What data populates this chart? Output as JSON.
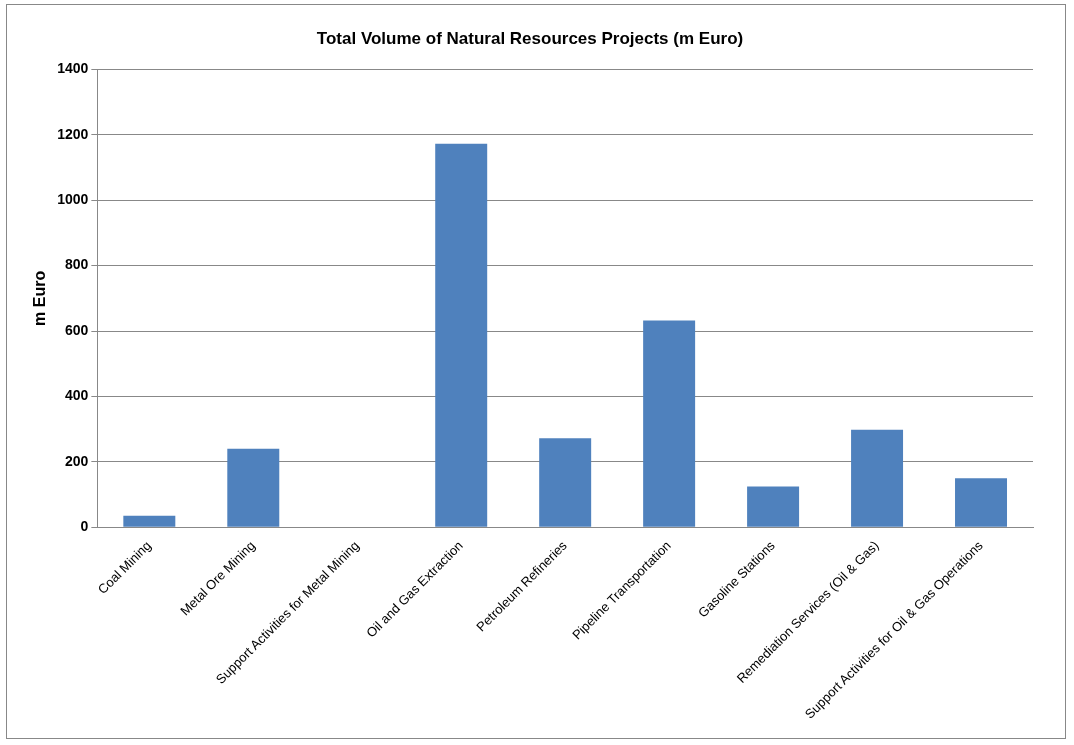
{
  "chart_data": {
    "type": "bar",
    "title": "Total Volume of Natural Resources Projects (m Euro)",
    "ylabel": "m Euro",
    "categories": [
      "Coal Mining",
      "Metal Ore Mining",
      "Support Activities for Metal Mining",
      "Oil and Gas Extraction",
      "Petroleum Refineries",
      "Pipeline Transportation",
      "Gasoline Stations",
      "Remediation Services (Oil & Gas)",
      "Support Activities for Oil & Gas Operations"
    ],
    "values": [
      35,
      240,
      0,
      1173,
      272,
      632,
      125,
      298,
      150
    ],
    "color": "#4f81bd",
    "ylim": [
      0,
      1400
    ],
    "yticks": [
      0,
      200,
      400,
      600,
      800,
      1000,
      1200,
      1400
    ],
    "grid": "y"
  }
}
